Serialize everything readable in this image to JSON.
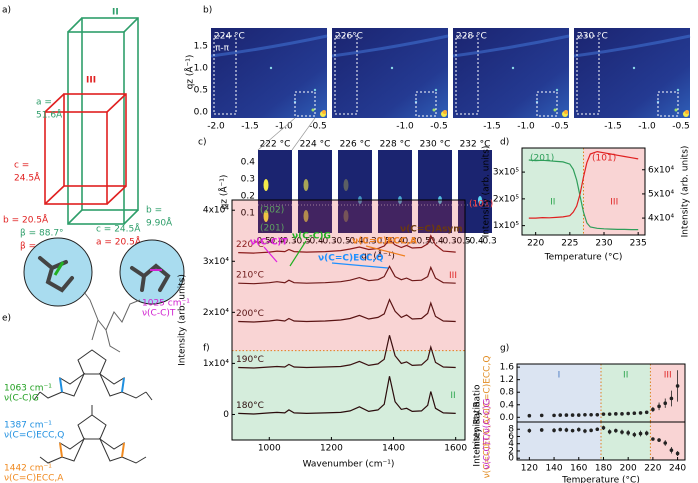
{
  "panel_labels": {
    "a": "a)",
    "b": "b)",
    "c": "c)",
    "d": "d)",
    "e": "e)",
    "f": "f)",
    "g": "g)"
  },
  "crystal": {
    "phase_ii": "II",
    "phase_iii": "III",
    "ii_a": "a =",
    "ii_a_val": "51.6Å",
    "iii_c": "c =",
    "iii_c_val": "24.5Å",
    "iii_b": "b = 20.5Å",
    "ii_beta": "β = 88.7°",
    "iii_beta": "β = 90°",
    "ii_c": "c = 24.5Å",
    "iii_a": "a = 20.5Å",
    "ii_b": "b =",
    "ii_b_val": "9.90Å"
  },
  "giwaxs_b": {
    "temperatures": [
      "224 °C",
      "226°C",
      "228 °C",
      "230 °C"
    ],
    "peak_label": "π-π",
    "ylabel": "qz (Å⁻¹)",
    "yticks": [
      "1.5",
      "1.0",
      "0.5",
      "0.0"
    ],
    "xticks": [
      [
        "-2.0",
        "-1.5",
        "-1.0",
        "-0.5"
      ],
      [
        "-1.0",
        "-0.5"
      ],
      [
        "-1.5",
        "-1.0",
        "-0.5"
      ],
      [
        "-1.5",
        "-1.0",
        "-0.5"
      ]
    ]
  },
  "giwaxs_c": {
    "temperatures": [
      "222 °C",
      "224 °C",
      "226 °C",
      "228 °C",
      "230 °C",
      "232 °C"
    ],
    "ylabel": "qz (Å⁻¹)",
    "xlabel": "qr (Å⁻¹)",
    "yticks": [
      "0.4",
      "0.3",
      "0.2",
      "0.1"
    ],
    "xticks": [
      "-0.5",
      "-0.4",
      "-0.3"
    ],
    "peaks": [
      "(202)",
      "(201)",
      "(101)"
    ]
  },
  "molecule": {
    "modes": [
      {
        "wavenumber": "1025 cm⁻¹",
        "mode": "ν(C-C)T",
        "color": "#d020d0"
      },
      {
        "wavenumber": "1063 cm⁻¹",
        "mode": "ν(C-C)G",
        "color": "#22a022"
      },
      {
        "wavenumber": "1387 cm⁻¹",
        "mode": "ν(C=C)ECC,Q",
        "color": "#1e8fe0"
      },
      {
        "wavenumber": "1442 cm⁻¹",
        "mode": "ν(C=C)ECC,A",
        "color": "#f08a20"
      }
    ]
  },
  "chart_data": [
    {
      "type": "line",
      "xlabel": "Temperature (°C)",
      "ylabel": "Intensity (arb. units)",
      "y2label": "Intensity (arb. units)",
      "xlim": [
        218,
        236
      ],
      "xticks": [
        220,
        225,
        230,
        235
      ],
      "ylim": [
        65000,
        390000
      ],
      "yticks": [
        {
          "value": 100000,
          "label": "1x10⁵"
        },
        {
          "value": 200000,
          "label": "2x10⁵"
        },
        {
          "value": 300000,
          "label": "3x10⁵"
        }
      ],
      "y2lim": [
        33000,
        69000
      ],
      "y2ticks": [
        {
          "value": 40000,
          "label": "4x10⁴"
        },
        {
          "value": 50000,
          "label": "5x10⁴"
        },
        {
          "value": 60000,
          "label": "6x10⁴"
        }
      ],
      "region_axis": "x",
      "regions": [
        {
          "label": "II",
          "from": 218,
          "to": 227,
          "color": "#2fa64f"
        },
        {
          "label": "III",
          "from": 227,
          "to": 236,
          "color": "#e02828"
        }
      ],
      "series": [
        {
          "name": "(201)",
          "color": "#2e9e5a",
          "x": [
            219,
            220,
            221,
            222,
            223,
            224,
            225,
            225.5,
            226,
            226.5,
            227,
            227.5,
            228,
            229,
            230,
            231,
            232,
            233,
            234,
            235
          ],
          "values": [
            345000,
            343000,
            344000,
            342000,
            340000,
            338000,
            330000,
            310000,
            270000,
            210000,
            150000,
            110000,
            95000,
            90000,
            88000,
            87000,
            86000,
            86000,
            85000,
            85000
          ]
        },
        {
          "name": "(101)",
          "color": "#e02020",
          "axis": "y2",
          "x": [
            219,
            220,
            221,
            222,
            223,
            224,
            225,
            225.5,
            226,
            226.5,
            227,
            227.5,
            228,
            229,
            230,
            231,
            232,
            233,
            234,
            235
          ],
          "values": [
            40000,
            40000,
            40200,
            40100,
            40300,
            40500,
            41000,
            42500,
            45000,
            50000,
            57000,
            63000,
            66500,
            67500,
            67000,
            66500,
            66000,
            65500,
            65000,
            64500
          ]
        }
      ]
    },
    {
      "type": "line",
      "xlabel": "Wavenumber (cm⁻¹)",
      "ylabel": "Intensity (arb. units)",
      "xlim": [
        880,
        1630
      ],
      "xticks": [
        1000,
        1200,
        1400,
        1600
      ],
      "ylim": [
        -5000,
        42000
      ],
      "yticks": [
        0,
        {
          "value": 10000,
          "label": "1x10⁴"
        },
        {
          "value": 20000,
          "label": "2x10⁴"
        },
        {
          "value": 30000,
          "label": "3x10⁴"
        },
        {
          "value": 40000,
          "label": "4x10⁴"
        }
      ],
      "region_axis": "y",
      "regions": [
        {
          "label": "II",
          "from": -5000,
          "to": 12500,
          "color": "#2fa64f"
        },
        {
          "label": "III",
          "from": 12500,
          "to": 42000,
          "color": "#e02828"
        }
      ],
      "x": [
        900,
        950,
        1000,
        1025,
        1050,
        1063,
        1080,
        1120,
        1180,
        1230,
        1260,
        1290,
        1320,
        1350,
        1370,
        1387,
        1405,
        1425,
        1442,
        1460,
        1490,
        1510,
        1520,
        1535,
        1560,
        1600
      ],
      "series": [
        {
          "name": "220°C",
          "color": "#8a1a1a",
          "values": [
            31700,
            31600,
            31800,
            32000,
            31900,
            32300,
            31900,
            31800,
            31900,
            32100,
            32400,
            32800,
            32300,
            32500,
            33000,
            34200,
            33200,
            32700,
            33100,
            32600,
            32700,
            33400,
            35000,
            33200,
            32000,
            31800
          ]
        },
        {
          "name": "210°C",
          "color": "#6e1818",
          "values": [
            25700,
            25600,
            25800,
            26000,
            25800,
            26300,
            25800,
            25700,
            25800,
            26000,
            26300,
            26800,
            26200,
            26400,
            27000,
            29000,
            27000,
            26400,
            26700,
            26200,
            26300,
            27000,
            28800,
            26700,
            25800,
            25700
          ]
        },
        {
          "name": "200°C",
          "color": "#5a1414",
          "values": [
            18200,
            18100,
            18300,
            18500,
            18300,
            18800,
            18300,
            18200,
            18300,
            18500,
            18800,
            19400,
            18700,
            19000,
            19700,
            22500,
            20200,
            19000,
            19500,
            18700,
            18800,
            19800,
            21800,
            19200,
            18300,
            18200
          ]
        },
        {
          "name": "190°C",
          "color": "#3a1010",
          "values": [
            9200,
            9100,
            9300,
            9400,
            9300,
            9800,
            9300,
            9200,
            9300,
            9400,
            9700,
            10400,
            9600,
            9900,
            10800,
            15500,
            11500,
            10000,
            10300,
            9600,
            9700,
            10800,
            13200,
            10200,
            9300,
            9200
          ]
        },
        {
          "name": "180°C",
          "color": "#2a0c0c",
          "values": [
            200,
            100,
            300,
            400,
            300,
            900,
            300,
            200,
            300,
            400,
            700,
            1500,
            600,
            900,
            2000,
            7500,
            2500,
            1000,
            1200,
            600,
            700,
            1800,
            4500,
            1200,
            300,
            200
          ]
        }
      ],
      "annotations": [
        {
          "text": "ν(C-C)T",
          "color": "#e020e0"
        },
        {
          "text": "ν(C-C)G",
          "color": "#20b020"
        },
        {
          "text": "ν(C=C)ECC,Q",
          "color": "#1e90ff"
        },
        {
          "text": "ν(C=C)ECC,A",
          "color": "#f08020"
        },
        {
          "text": "ν(C=C)Asym",
          "color": "#6b3a10"
        }
      ]
    },
    {
      "type": "scatter",
      "ylabel": "Intenisty Ratio",
      "ylabel_note": "ν(C=C)ECC,A/ν(C=C)ECC,Q",
      "ylabel_note_color": "#e08a1e",
      "xlim": [
        110,
        246
      ],
      "ylim": [
        -0.15,
        1.7
      ],
      "yticks": [
        {
          "value": 0,
          "label": "0.0"
        },
        0.4,
        0.8,
        1.2,
        1.6
      ],
      "region_axis": "x",
      "regions": [
        {
          "label": "I",
          "from": 110,
          "to": 178,
          "color": "#4a7ac0"
        },
        {
          "label": "II",
          "from": 178,
          "to": 218,
          "color": "#2fa64f"
        },
        {
          "label": "III",
          "from": 218,
          "to": 246,
          "color": "#e02828"
        }
      ],
      "x": [
        120,
        130,
        140,
        145,
        150,
        155,
        160,
        165,
        170,
        175,
        180,
        185,
        190,
        195,
        200,
        205,
        210,
        215,
        220,
        225,
        230,
        235,
        240
      ],
      "series": [
        {
          "color": "#222222",
          "values": [
            0.05,
            0.06,
            0.06,
            0.07,
            0.07,
            0.07,
            0.07,
            0.08,
            0.08,
            0.08,
            0.1,
            0.1,
            0.11,
            0.11,
            0.12,
            0.13,
            0.14,
            0.16,
            0.25,
            0.35,
            0.45,
            0.6,
            1.0
          ],
          "errors": [
            0.01,
            0.01,
            0.01,
            0.01,
            0.01,
            0.01,
            0.01,
            0.01,
            0.01,
            0.01,
            0.02,
            0.02,
            0.02,
            0.02,
            0.02,
            0.03,
            0.03,
            0.04,
            0.08,
            0.12,
            0.15,
            0.25,
            0.5
          ]
        }
      ]
    },
    {
      "type": "scatter",
      "xlabel": "Temperature (°C)",
      "ylabel": "Intenisty Ratio",
      "ylabel_note": "ν(C-C)T/ν(C-C)G",
      "ylabel_note_color": "#c020c0",
      "xlim": [
        110,
        246
      ],
      "xticks": [
        120,
        140,
        160,
        180,
        200,
        220,
        240
      ],
      "ylim": [
        -0.5,
        10
      ],
      "yticks": [
        0,
        2,
        4,
        6,
        8
      ],
      "region_axis": "x",
      "regions": [
        {
          "from": 110,
          "to": 178,
          "color": "#4a7ac0"
        },
        {
          "from": 178,
          "to": 218,
          "color": "#2fa64f"
        },
        {
          "from": 218,
          "to": 246,
          "color": "#e02828"
        }
      ],
      "x": [
        120,
        130,
        140,
        145,
        150,
        155,
        160,
        165,
        170,
        175,
        180,
        185,
        190,
        195,
        200,
        205,
        210,
        215,
        220,
        225,
        230,
        235,
        240
      ],
      "series": [
        {
          "color": "#222222",
          "values": [
            7.6,
            7.8,
            7.7,
            7.9,
            7.8,
            7.6,
            7.9,
            7.5,
            7.7,
            8.0,
            8.4,
            7.3,
            7.6,
            7.2,
            7.0,
            6.5,
            6.8,
            6.9,
            5.3,
            5.0,
            4.2,
            2.2,
            1.3
          ],
          "errors": [
            0.6,
            0.5,
            0.6,
            0.5,
            0.6,
            0.5,
            0.6,
            0.6,
            0.5,
            0.5,
            0.6,
            0.7,
            0.6,
            0.7,
            0.8,
            0.7,
            0.8,
            0.7,
            0.4,
            0.5,
            0.8,
            0.9,
            0.7
          ]
        }
      ]
    }
  ]
}
